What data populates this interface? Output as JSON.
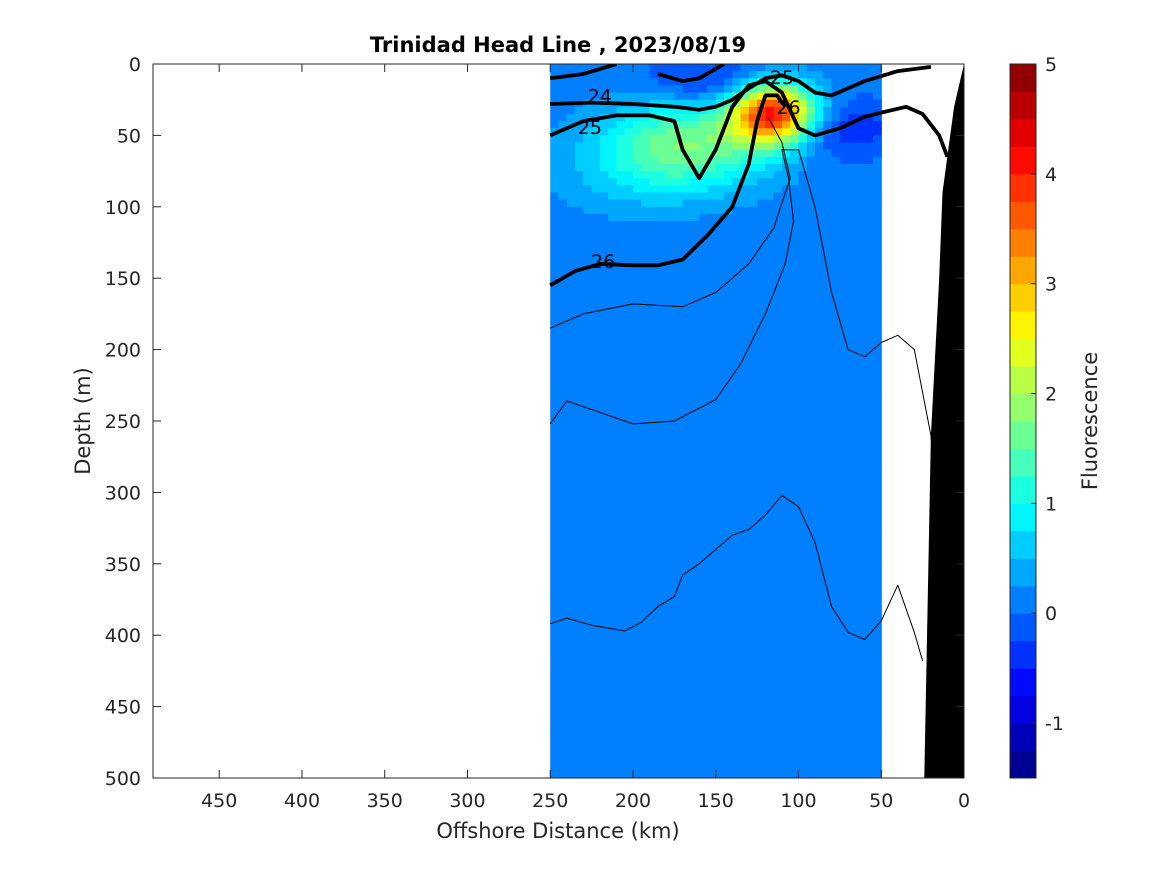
{
  "chart_data": {
    "type": "heatmap",
    "title": "Trinidad Head Line , 2023/08/19",
    "xlabel": "Offshore Distance (km)",
    "ylabel": "Depth (m)",
    "xlim": [
      490,
      0
    ],
    "ylim": [
      0,
      500
    ],
    "x_reversed": true,
    "y_reversed": true,
    "xticks": [
      450,
      400,
      350,
      300,
      250,
      200,
      150,
      100,
      50,
      0
    ],
    "yticks": [
      0,
      50,
      100,
      150,
      200,
      250,
      300,
      350,
      400,
      450,
      500
    ],
    "colorbar": {
      "label": "Fluorescence",
      "range": [
        -1.5,
        5
      ],
      "ticks": [
        -1,
        0,
        1,
        2,
        3,
        4,
        5
      ],
      "colormap": "jet"
    },
    "data_extent_km": [
      250,
      50
    ],
    "fluorescence_background": 0.1,
    "fluorescence_features": [
      {
        "name": "surface low",
        "x": 150,
        "depth": 15,
        "value": -0.5
      },
      {
        "name": "nearshore low",
        "x": 85,
        "depth": 45,
        "value": -0.6
      },
      {
        "name": "subsurface peak",
        "x": 115,
        "depth": 35,
        "value": 4.2
      },
      {
        "name": "offshore tongue",
        "x": 165,
        "depth": 55,
        "value": 1.6
      },
      {
        "name": "deep chlorophyll layer",
        "x": 200,
        "depth": 75,
        "value": 0.5
      }
    ],
    "density_contours": [
      {
        "level": "24",
        "labeled": true,
        "bold": true,
        "points": [
          [
            250,
            28
          ],
          [
            225,
            27
          ],
          [
            200,
            28
          ],
          [
            175,
            30
          ],
          [
            160,
            32
          ],
          [
            150,
            30
          ],
          [
            140,
            25
          ],
          [
            130,
            17
          ],
          [
            120,
            10
          ],
          [
            110,
            8
          ],
          [
            100,
            12
          ],
          [
            90,
            20
          ],
          [
            80,
            22
          ],
          [
            60,
            12
          ],
          [
            40,
            5
          ],
          [
            20,
            2
          ]
        ]
      },
      {
        "level": "25",
        "labeled": true,
        "bold": true,
        "points": [
          [
            250,
            50
          ],
          [
            230,
            40
          ],
          [
            210,
            36
          ],
          [
            190,
            36
          ],
          [
            175,
            40
          ],
          [
            170,
            60
          ],
          [
            160,
            80
          ],
          [
            150,
            60
          ],
          [
            140,
            30
          ],
          [
            130,
            15
          ],
          [
            120,
            12
          ],
          [
            110,
            20
          ],
          [
            100,
            45
          ],
          [
            90,
            50
          ],
          [
            75,
            45
          ],
          [
            60,
            37
          ],
          [
            50,
            34
          ],
          [
            35,
            30
          ],
          [
            25,
            35
          ],
          [
            15,
            50
          ],
          [
            10,
            65
          ]
        ]
      },
      {
        "level": "26",
        "labeled": true,
        "bold": true,
        "points": [
          [
            250,
            155
          ],
          [
            235,
            145
          ],
          [
            220,
            140
          ],
          [
            200,
            141
          ],
          [
            185,
            141
          ],
          [
            170,
            137
          ],
          [
            155,
            120
          ],
          [
            140,
            100
          ],
          [
            130,
            70
          ],
          [
            125,
            40
          ],
          [
            120,
            22
          ],
          [
            113,
            22
          ],
          [
            108,
            30
          ]
        ]
      },
      {
        "level": "",
        "labeled": false,
        "bold": true,
        "points": [
          [
            250,
            10
          ],
          [
            230,
            7
          ],
          [
            210,
            0
          ]
        ]
      },
      {
        "level": "",
        "labeled": false,
        "bold": true,
        "points": [
          [
            185,
            7
          ],
          [
            170,
            12
          ],
          [
            160,
            10
          ],
          [
            145,
            0
          ]
        ]
      },
      {
        "level": "",
        "labeled": false,
        "bold": false,
        "points": [
          [
            250,
            185
          ],
          [
            230,
            175
          ],
          [
            200,
            168
          ],
          [
            170,
            170
          ],
          [
            150,
            160
          ],
          [
            130,
            140
          ],
          [
            115,
            115
          ],
          [
            105,
            80
          ],
          [
            110,
            55
          ],
          [
            118,
            38
          ]
        ]
      },
      {
        "level": "",
        "labeled": false,
        "bold": false,
        "points": [
          [
            250,
            252
          ],
          [
            240,
            236
          ],
          [
            230,
            240
          ],
          [
            200,
            252
          ],
          [
            175,
            250
          ],
          [
            150,
            235
          ],
          [
            135,
            210
          ],
          [
            120,
            175
          ],
          [
            108,
            140
          ],
          [
            103,
            110
          ],
          [
            106,
            80
          ],
          [
            110,
            60
          ],
          [
            100,
            60
          ],
          [
            90,
            100
          ],
          [
            80,
            160
          ],
          [
            70,
            200
          ],
          [
            60,
            205
          ],
          [
            50,
            195
          ],
          [
            40,
            190
          ],
          [
            30,
            200
          ],
          [
            20,
            260
          ],
          [
            15,
            330
          ],
          [
            12,
            400
          ]
        ]
      },
      {
        "level": "",
        "labeled": false,
        "bold": false,
        "points": [
          [
            250,
            392
          ],
          [
            240,
            388
          ],
          [
            225,
            393
          ],
          [
            205,
            397
          ],
          [
            195,
            391
          ],
          [
            185,
            380
          ],
          [
            175,
            373
          ],
          [
            170,
            358
          ],
          [
            160,
            350
          ],
          [
            150,
            340
          ],
          [
            140,
            330
          ],
          [
            130,
            326
          ],
          [
            120,
            316
          ],
          [
            110,
            302
          ],
          [
            100,
            310
          ],
          [
            90,
            335
          ],
          [
            80,
            380
          ],
          [
            70,
            398
          ],
          [
            60,
            403
          ],
          [
            50,
            390
          ],
          [
            40,
            365
          ],
          [
            30,
            398
          ],
          [
            25,
            418
          ]
        ]
      }
    ],
    "bathymetry": {
      "fill": "#000000",
      "points": [
        [
          24,
          500
        ],
        [
          20,
          260
        ],
        [
          15,
          150
        ],
        [
          13,
          90
        ],
        [
          6,
          30
        ],
        [
          0,
          0
        ],
        [
          0,
          500
        ]
      ]
    }
  }
}
